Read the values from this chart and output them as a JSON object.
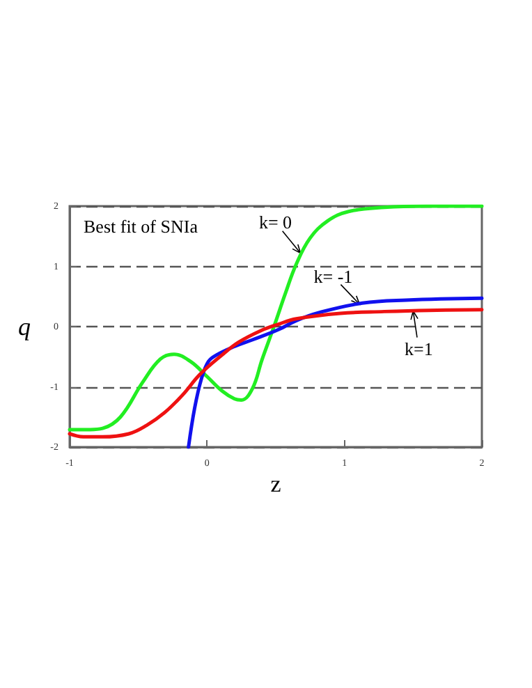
{
  "chart_data": {
    "type": "line",
    "xlabel": "z",
    "ylabel": "q",
    "xlim": [
      -1,
      2
    ],
    "ylim": [
      -2,
      2
    ],
    "xticks": [
      -1,
      0,
      1,
      2
    ],
    "yticks": [
      -2,
      -1,
      0,
      1,
      2
    ],
    "grid": "y",
    "marker": "none",
    "line_style": "solid",
    "annotations": [
      "Best fit of SNIa",
      {
        "text": "k= 0",
        "x": 0.68,
        "y": 1.22
      },
      {
        "text": "k= -1",
        "x": 1.11,
        "y": 0.37
      },
      {
        "text": "k=1",
        "x": 1.5,
        "y": 0.26
      }
    ],
    "series": [
      {
        "color": "#22ee22",
        "x": [
          -1,
          -0.85,
          -0.76,
          -0.63,
          -0.47,
          -0.34,
          -0.24,
          -0.12,
          0,
          0.11,
          0.2,
          0.25,
          0.33,
          0.4,
          0.49,
          0.57,
          0.65,
          0.75,
          0.875,
          1.03,
          1.29,
          1.6,
          2
        ],
        "values": [
          -1.71,
          -1.71,
          -1.69,
          -1.5,
          -0.93,
          -0.54,
          -0.46,
          -0.58,
          -0.83,
          -1.07,
          -1.2,
          -1.22,
          -1.03,
          -0.55,
          0.02,
          0.55,
          1.04,
          1.47,
          1.75,
          1.91,
          1.98,
          2,
          2
        ]
      },
      {
        "color": "#1111ee",
        "x": [
          -0.135,
          -0.09,
          -0.04,
          0.01,
          0.07,
          0.2,
          0.33,
          0.52,
          0.65,
          0.81,
          1.13,
          1.45,
          2
        ],
        "values": [
          -2,
          -1.35,
          -0.86,
          -0.58,
          -0.47,
          -0.33,
          -0.22,
          -0.05,
          0.1,
          0.23,
          0.39,
          0.44,
          0.47
        ]
      },
      {
        "color": "#ee1111",
        "x": [
          -1,
          -0.9,
          -0.76,
          -0.57,
          -0.44,
          -0.31,
          -0.18,
          -0.05,
          0.11,
          0.23,
          0.39,
          0.52,
          0.65,
          0.97,
          1.29,
          1.61,
          2
        ],
        "values": [
          -1.78,
          -1.83,
          -1.83,
          -1.78,
          -1.64,
          -1.43,
          -1.14,
          -0.79,
          -0.47,
          -0.26,
          -0.07,
          0.04,
          0.13,
          0.22,
          0.25,
          0.27,
          0.28
        ]
      }
    ]
  }
}
